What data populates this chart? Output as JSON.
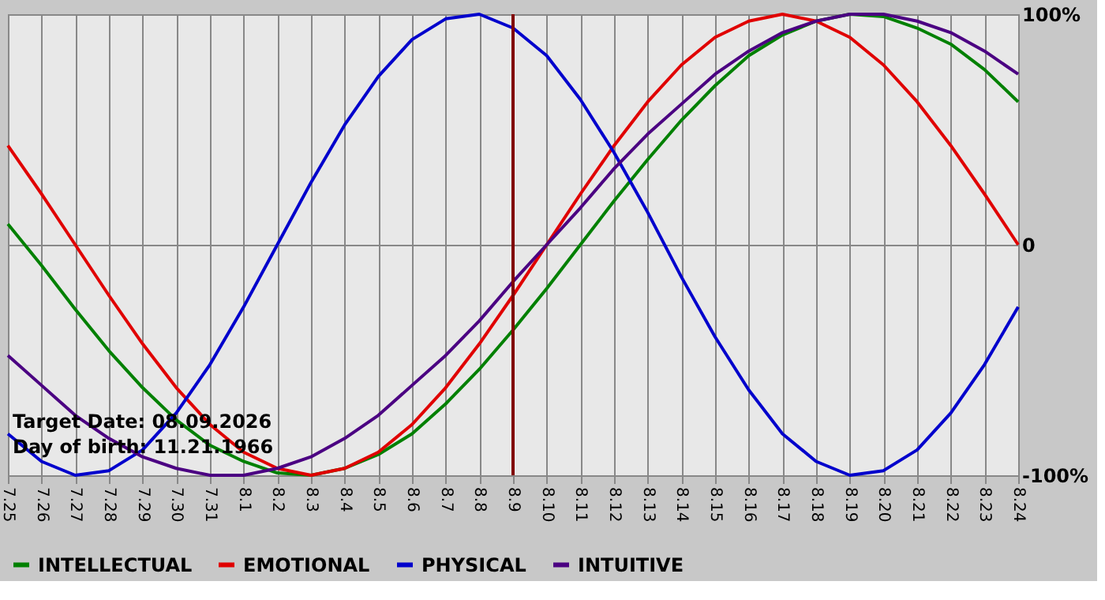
{
  "chart_data": {
    "type": "line",
    "categories": [
      "7.25",
      "7.26",
      "7.27",
      "7.28",
      "7.29",
      "7.30",
      "7.31",
      "8.1",
      "8.2",
      "8.3",
      "8.4",
      "8.5",
      "8.6",
      "8.7",
      "8.8",
      "8.9",
      "8.10",
      "8.11",
      "8.12",
      "8.13",
      "8.14",
      "8.15",
      "8.16",
      "8.17",
      "8.18",
      "8.19",
      "8.20",
      "8.21",
      "8.22",
      "8.23",
      "8.24"
    ],
    "series": [
      {
        "name": "INTELLECTUAL",
        "color": "#008000",
        "values": [
          9,
          -9,
          -28,
          -46,
          -62,
          -76,
          -87,
          -94,
          -99,
          -100,
          -97,
          -91,
          -82,
          -69,
          -54,
          -37,
          -19,
          0,
          19,
          37,
          54,
          69,
          82,
          91,
          97,
          100,
          99,
          94,
          87,
          76,
          62
        ]
      },
      {
        "name": "EMOTIONAL",
        "color": "#e00000",
        "values": [
          43,
          22,
          0,
          -22,
          -43,
          -62,
          -78,
          -90,
          -97,
          -100,
          -97,
          -90,
          -78,
          -62,
          -43,
          -22,
          0,
          22,
          43,
          62,
          78,
          90,
          97,
          100,
          97,
          90,
          78,
          62,
          43,
          22,
          0
        ]
      },
      {
        "name": "PHYSICAL",
        "color": "#0000cc",
        "values": [
          -82,
          -94,
          -100,
          -98,
          -89,
          -73,
          -52,
          -27,
          0,
          27,
          52,
          73,
          89,
          98,
          100,
          94,
          82,
          63,
          40,
          14,
          -14,
          -40,
          -63,
          -82,
          -94,
          -100,
          -98,
          -89,
          -73,
          -52,
          -27
        ]
      },
      {
        "name": "INTUITIVE",
        "color": "#4b0082",
        "values": [
          -48,
          -61,
          -74,
          -84,
          -92,
          -97,
          -100,
          -100,
          -97,
          -92,
          -84,
          -74,
          -61,
          -48,
          -33,
          -16,
          0,
          16,
          33,
          48,
          61,
          74,
          84,
          92,
          97,
          100,
          100,
          97,
          92,
          84,
          74
        ]
      }
    ],
    "ylim": [
      -100,
      100
    ],
    "yticks": [
      {
        "value": 100,
        "label": "100%"
      },
      {
        "value": 0,
        "label": "0"
      },
      {
        "value": -100,
        "label": "-100%"
      }
    ],
    "ref_lines": [
      {
        "axis": "x",
        "value": "8.9",
        "color": "#800000"
      }
    ],
    "annotations": [
      "Target Date: 08.09.2026",
      "Day of birth: 11.21.1966"
    ],
    "grid": true,
    "legend": "bottom",
    "marker": "none",
    "line_style": "solid"
  }
}
